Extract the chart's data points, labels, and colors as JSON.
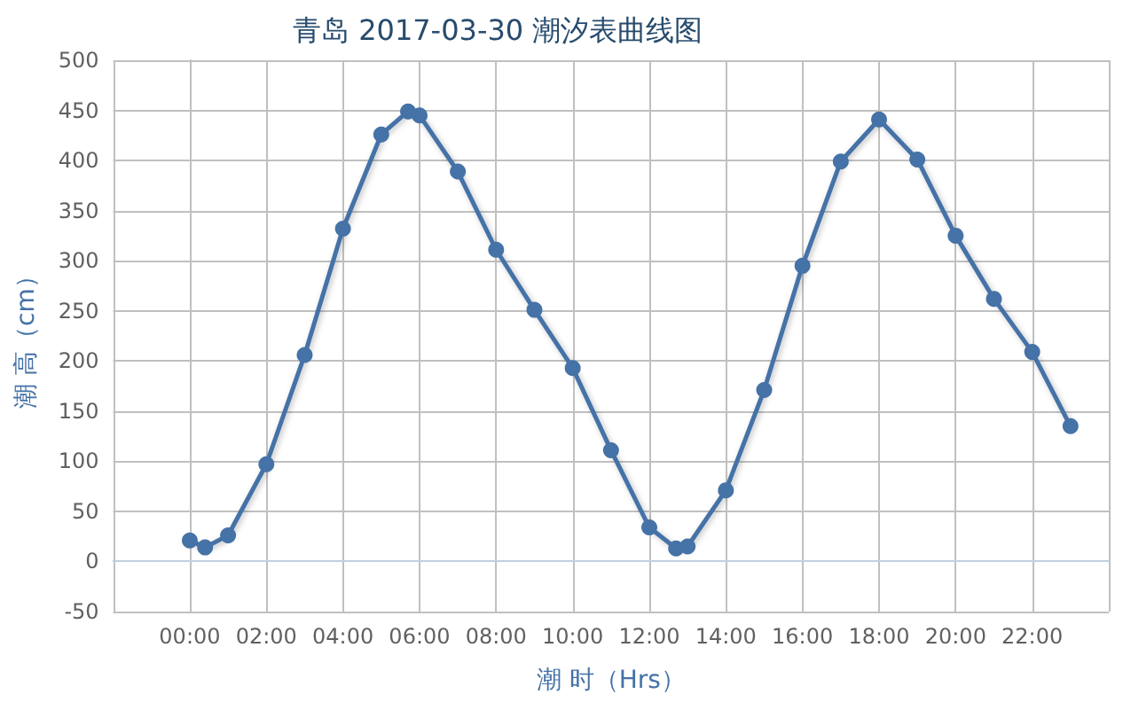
{
  "chart_data": {
    "type": "line",
    "title": "青岛 2017-03-30 潮汐表曲线图",
    "xlabel": "潮 时（Hrs）",
    "ylabel": "潮 高（cm）",
    "x": [
      0,
      0.4,
      1,
      2,
      3,
      4,
      5,
      5.7,
      6,
      7,
      8,
      9,
      10,
      11,
      12,
      12.7,
      13,
      14,
      15,
      16,
      17,
      18,
      19,
      20,
      21,
      22,
      23
    ],
    "series": [
      {
        "color": "#4572a7",
        "values": [
          21,
          14,
          26,
          97,
          206,
          332,
          426,
          449,
          445,
          389,
          311,
          251,
          193,
          111,
          34,
          13,
          15,
          71,
          171,
          295,
          399,
          441,
          401,
          325,
          262,
          209,
          135
        ]
      }
    ],
    "xlim": [
      -2,
      24
    ],
    "xticks": [
      {
        "value": -2,
        "label": null
      },
      {
        "value": 0,
        "label": "00:00"
      },
      {
        "value": 2,
        "label": "02:00"
      },
      {
        "value": 4,
        "label": "04:00"
      },
      {
        "value": 6,
        "label": "06:00"
      },
      {
        "value": 8,
        "label": "08:00"
      },
      {
        "value": 10,
        "label": "10:00"
      },
      {
        "value": 12,
        "label": "12:00"
      },
      {
        "value": 14,
        "label": "14:00"
      },
      {
        "value": 16,
        "label": "16:00"
      },
      {
        "value": 18,
        "label": "18:00"
      },
      {
        "value": 20,
        "label": "20:00"
      },
      {
        "value": 22,
        "label": "22:00"
      },
      {
        "value": 24,
        "label": null
      }
    ],
    "ylim": [
      -50,
      500
    ],
    "yticks": [
      -50,
      0,
      50,
      100,
      150,
      200,
      250,
      300,
      350,
      400,
      450,
      500
    ],
    "grid": true,
    "marker": "circle",
    "line_style": "solid"
  }
}
